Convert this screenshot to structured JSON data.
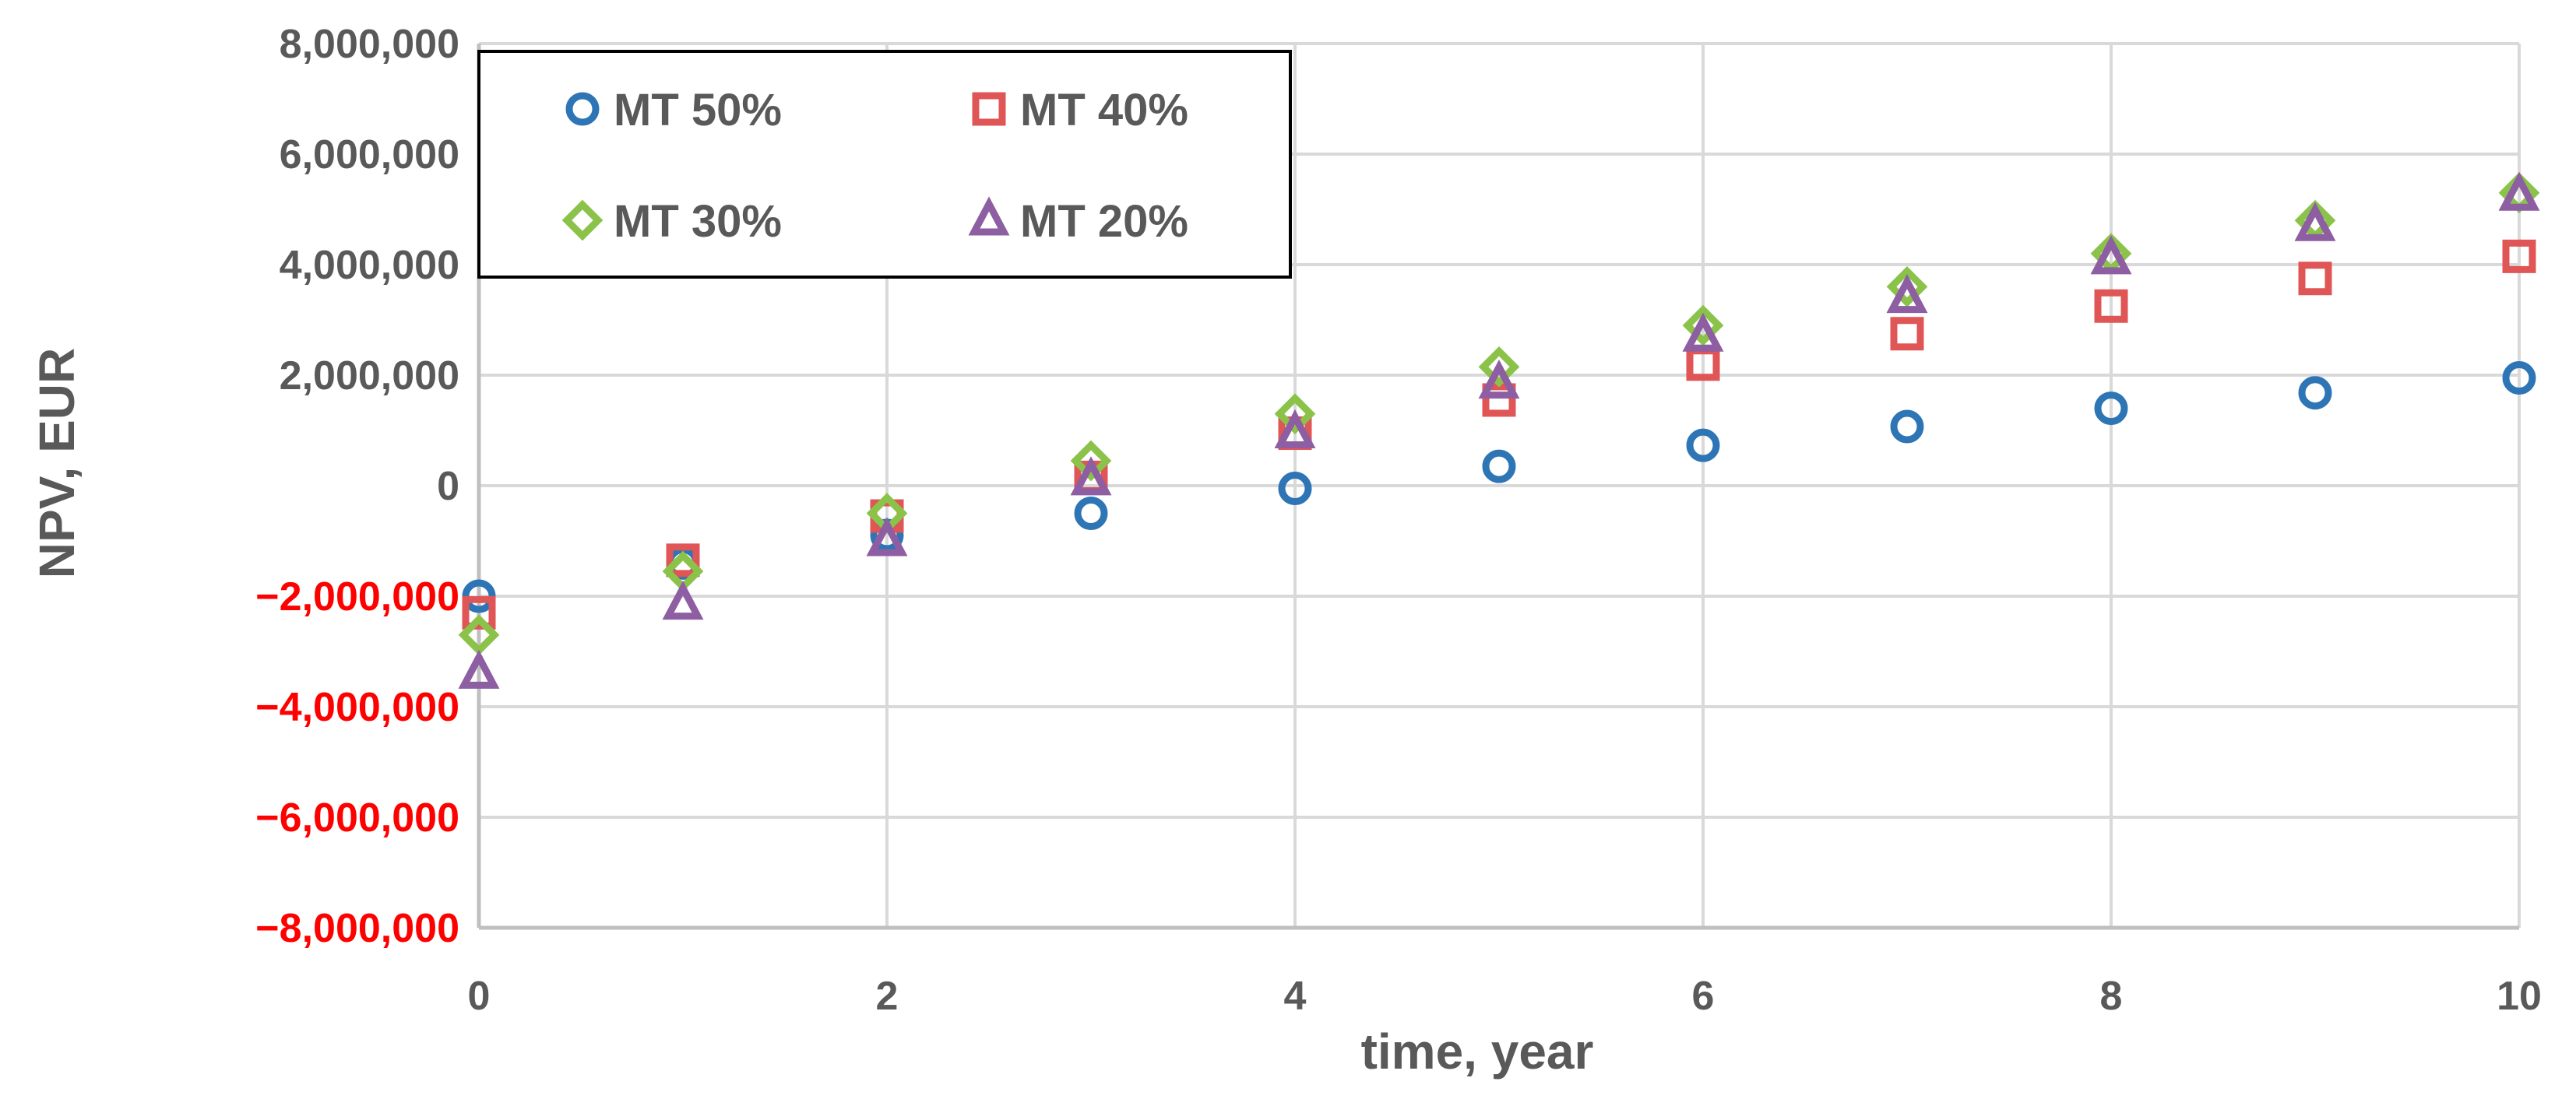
{
  "chart_data": {
    "type": "scatter",
    "title": "",
    "xlabel": "time, year",
    "ylabel": "NPV, EUR",
    "xlim": [
      0,
      10
    ],
    "ylim": [
      -8000000,
      8000000
    ],
    "x_ticks": [
      0,
      2,
      4,
      6,
      8,
      10
    ],
    "x_tick_labels": [
      "0",
      "2",
      "4",
      "6",
      "8",
      "10"
    ],
    "y_ticks": [
      8000000,
      6000000,
      4000000,
      2000000,
      0,
      -2000000,
      -4000000,
      -6000000,
      -8000000
    ],
    "y_tick_labels": [
      "8,000,000",
      "6,000,000",
      "4,000,000",
      "2,000,000",
      "0",
      "−2,000,000",
      "−4,000,000",
      "−6,000,000",
      "−8,000,000"
    ],
    "negative_label_color": "#ff0000",
    "grid": true,
    "legend_position": "top-left",
    "x": [
      0,
      1,
      2,
      3,
      4,
      5,
      6,
      7,
      8,
      9,
      10
    ],
    "series": [
      {
        "name": "MT 50%",
        "marker": "circle",
        "color": "#2e75b6",
        "values": [
          -2000000,
          -1400000,
          -900000,
          -500000,
          -50000,
          350000,
          730000,
          1070000,
          1400000,
          1680000,
          1950000
        ]
      },
      {
        "name": "MT 40%",
        "marker": "square",
        "color": "#e05555",
        "values": [
          -2300000,
          -1350000,
          -550000,
          150000,
          950000,
          1550000,
          2200000,
          2750000,
          3250000,
          3750000,
          4150000
        ]
      },
      {
        "name": "MT 30%",
        "marker": "diamond",
        "color": "#8bc34a",
        "values": [
          -2700000,
          -1550000,
          -500000,
          450000,
          1300000,
          2150000,
          2900000,
          3600000,
          4200000,
          4800000,
          5300000
        ]
      },
      {
        "name": "MT 20%",
        "marker": "triangle",
        "color": "#8e5ea2",
        "values": [
          -3400000,
          -2150000,
          -1000000,
          100000,
          950000,
          1850000,
          2700000,
          3400000,
          4100000,
          4700000,
          5250000
        ]
      }
    ]
  }
}
